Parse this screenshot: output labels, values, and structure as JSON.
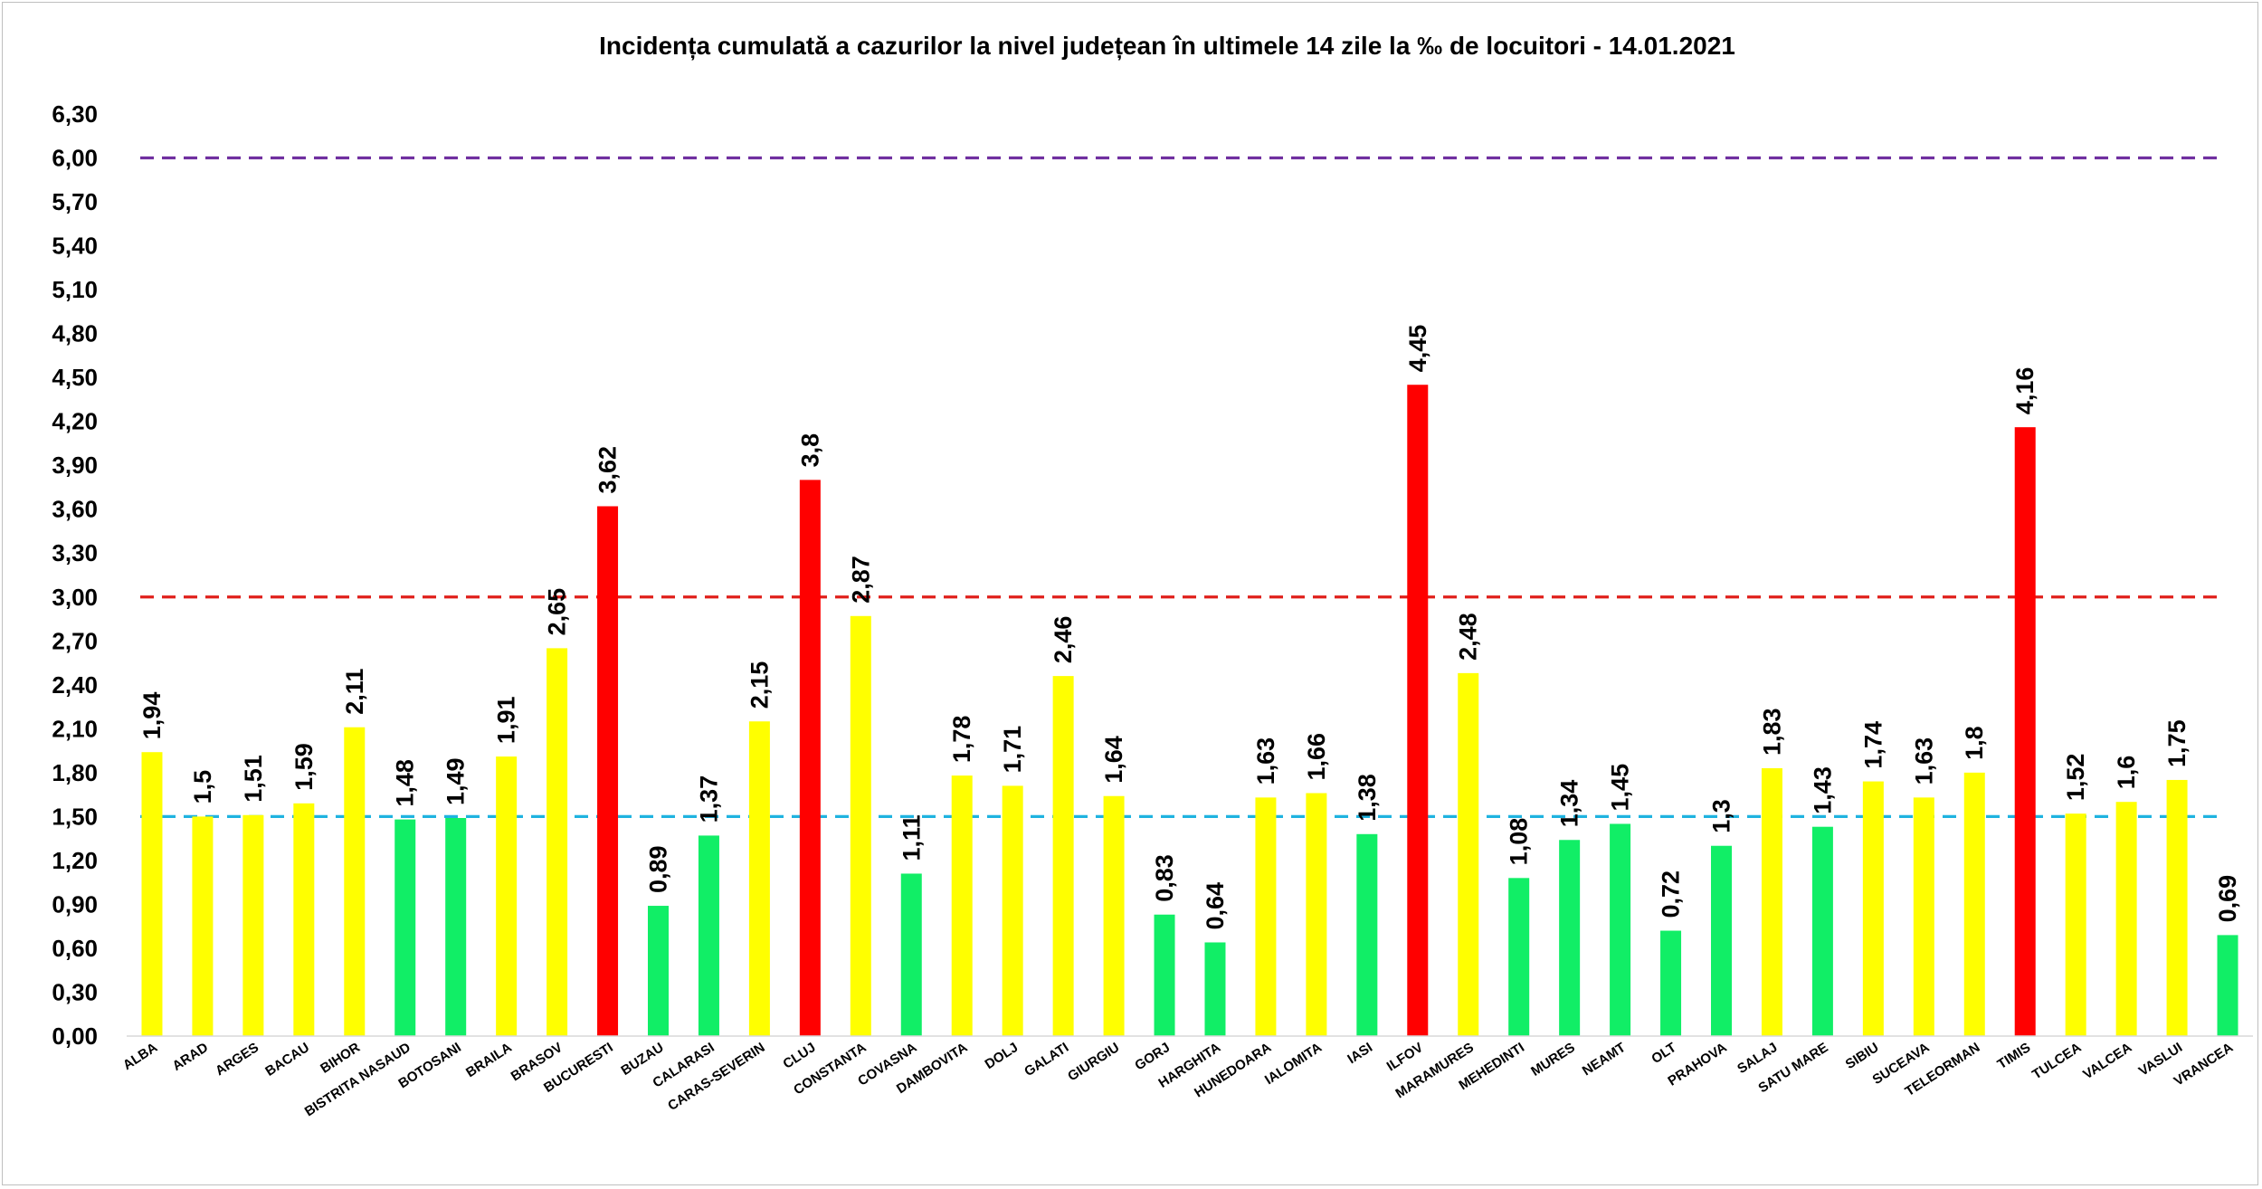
{
  "chart_data": {
    "type": "bar",
    "title": "Incidența cumulată a cazurilor la nivel județean în ultimele 14 zile   la ‰ de locuitori  - 14.01.2021",
    "xlabel": "",
    "ylabel": "",
    "ylim": [
      0,
      6.3
    ],
    "yticks": [
      "0,00",
      "0,30",
      "0,60",
      "0,90",
      "1,20",
      "1,50",
      "1,80",
      "2,10",
      "2,40",
      "2,70",
      "3,00",
      "3,30",
      "3,60",
      "3,90",
      "4,20",
      "4,50",
      "4,80",
      "5,10",
      "5,40",
      "5,70",
      "6,00",
      "6,30"
    ],
    "grid": false,
    "legend": "none",
    "categories": [
      "ALBA",
      "ARAD",
      "ARGES",
      "BACAU",
      "BIHOR",
      "BISTRITA NASAUD",
      "BOTOSANI",
      "BRAILA",
      "BRASOV",
      "BUCURESTI",
      "BUZAU",
      "CALARASI",
      "CARAS-SEVERIN",
      "CLUJ",
      "CONSTANTA",
      "COVASNA",
      "DAMBOVITA",
      "DOLJ",
      "GALATI",
      "GIURGIU",
      "GORJ",
      "HARGHITA",
      "HUNEDOARA",
      "IALOMITA",
      "IASI",
      "ILFOV",
      "MARAMURES",
      "MEHEDINTI",
      "MURES",
      "NEAMT",
      "OLT",
      "PRAHOVA",
      "SALAJ",
      "SATU MARE",
      "SIBIU",
      "SUCEAVA",
      "TELEORMAN",
      "TIMIS",
      "TULCEA",
      "VALCEA",
      "VASLUI",
      "VRANCEA"
    ],
    "values": [
      1.94,
      1.5,
      1.51,
      1.59,
      2.11,
      1.48,
      1.49,
      1.91,
      2.65,
      3.62,
      0.89,
      1.37,
      2.15,
      3.8,
      2.87,
      1.11,
      1.78,
      1.71,
      2.46,
      1.64,
      0.83,
      0.64,
      1.63,
      1.66,
      1.38,
      4.45,
      2.48,
      1.08,
      1.34,
      1.45,
      0.72,
      1.3,
      1.83,
      1.43,
      1.74,
      1.63,
      1.8,
      4.16,
      1.52,
      1.6,
      1.75,
      0.69
    ],
    "value_labels": [
      "1,94",
      "1,5",
      "1,51",
      "1,59",
      "2,11",
      "1,48",
      "1,49",
      "1,91",
      "2,65",
      "3,62",
      "0,89",
      "1,37",
      "2,15",
      "3,8",
      "2,87",
      "1,11",
      "1,78",
      "1,71",
      "2,46",
      "1,64",
      "0,83",
      "0,64",
      "1,63",
      "1,66",
      "1,38",
      "4,45",
      "2,48",
      "1,08",
      "1,34",
      "1,45",
      "0,72",
      "1,3",
      "1,83",
      "1,43",
      "1,74",
      "1,63",
      "1,8",
      "4,16",
      "1,52",
      "1,6",
      "1,75",
      "0,69"
    ],
    "bar_colors": [
      "yellow",
      "yellow",
      "yellow",
      "yellow",
      "yellow",
      "green",
      "green",
      "yellow",
      "yellow",
      "red",
      "green",
      "green",
      "yellow",
      "red",
      "yellow",
      "green",
      "yellow",
      "yellow",
      "yellow",
      "yellow",
      "green",
      "green",
      "yellow",
      "yellow",
      "green",
      "red",
      "yellow",
      "green",
      "green",
      "green",
      "green",
      "green",
      "yellow",
      "green",
      "yellow",
      "yellow",
      "yellow",
      "red",
      "yellow",
      "yellow",
      "yellow",
      "green"
    ],
    "reference_lines": [
      {
        "value": 6.0,
        "color": "#7030a0",
        "style": "dashed"
      },
      {
        "value": 3.0,
        "color": "#e0201b",
        "style": "dashed"
      },
      {
        "value": 1.5,
        "color": "#1fb3e0",
        "style": "dashed"
      }
    ],
    "colors": {
      "yellow": "#ffff00",
      "green": "#11ee66",
      "red": "#ff0000"
    }
  }
}
